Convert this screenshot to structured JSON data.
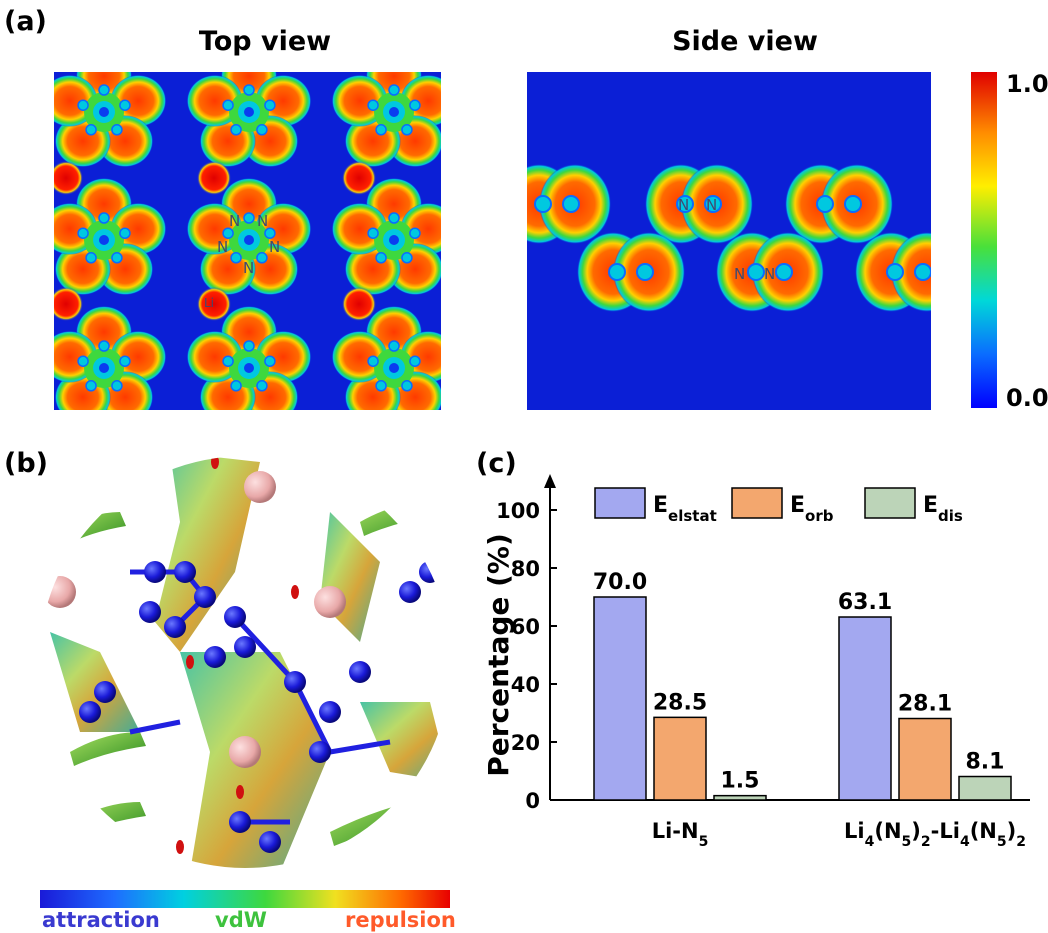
{
  "panels": {
    "a": "(a)",
    "b": "(b)",
    "c": "(c)"
  },
  "top_view": {
    "title": "Top view",
    "atom_labels": [
      "N",
      "N",
      "N",
      "N",
      "N",
      "Li"
    ]
  },
  "side_view": {
    "title": "Side view",
    "atom_labels": [
      "N",
      "N",
      "N",
      "N"
    ]
  },
  "colorbar": {
    "max": "1.0",
    "min": "0.0",
    "colors": [
      "#e00000",
      "#ff8c00",
      "#ffee00",
      "#49e03a",
      "#00d8d8",
      "#0a6cff",
      "#0000ff"
    ]
  },
  "nci_scale": {
    "attraction": "attraction",
    "vdw": "vdW",
    "repulsion": "repulsion",
    "attraction_color": "#3a3ad0",
    "vdw_color": "#3ec23e",
    "repulsion_color": "#ff5a2a"
  },
  "chart_data": {
    "type": "bar",
    "title": "",
    "xlabel": "",
    "ylabel": "Percentage (%)",
    "ylim": [
      0,
      100
    ],
    "yticks": [
      0,
      20,
      40,
      60,
      80,
      100
    ],
    "categories": [
      "Li-N5",
      "Li4(N5)2-Li4(N5)2"
    ],
    "series": [
      {
        "name": "E_elstat",
        "color": "#a3a8f0",
        "values": [
          70.0,
          63.1
        ],
        "labels": [
          "70.0",
          "63.1"
        ]
      },
      {
        "name": "E_orb",
        "color": "#f3a76e",
        "values": [
          28.5,
          28.1
        ],
        "labels": [
          "28.5",
          "28.1"
        ]
      },
      {
        "name": "E_dis",
        "color": "#bcd4b8",
        "values": [
          1.5,
          8.1
        ],
        "labels": [
          "1.5",
          "8.1"
        ]
      }
    ],
    "legend": "top"
  }
}
